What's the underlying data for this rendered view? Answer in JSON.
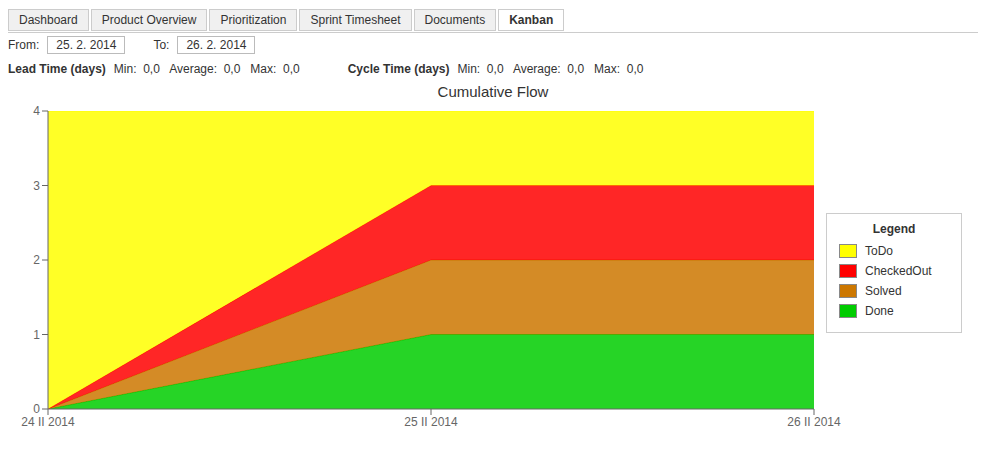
{
  "chart_data": {
    "type": "area",
    "title": "Cumulative Flow",
    "stacked": true,
    "grid": false,
    "legend": "right",
    "categories": [
      "24 ΙΙ 2014",
      "25 ΙΙ 2014",
      "26 ΙΙ 2014"
    ],
    "series": [
      {
        "name": "Done",
        "color": "#00cc00",
        "values": [
          0,
          1,
          1
        ]
      },
      {
        "name": "Solved",
        "color": "#cc7700",
        "values": [
          0,
          1,
          1
        ]
      },
      {
        "name": "CheckedOut",
        "color": "#ff0000",
        "values": [
          0,
          1,
          1
        ]
      },
      {
        "name": "ToDo",
        "color": "#ffff00",
        "values": [
          4,
          1,
          1
        ]
      }
    ],
    "ylim": [
      0,
      4
    ],
    "yticks": [
      0,
      1,
      2,
      3,
      4
    ],
    "annotations": [
      "Dashboard",
      "Product Overview",
      "Prioritization",
      "Sprint Timesheet",
      "Documents",
      "Kanban",
      "From:",
      "25. 2. 2014",
      "To:",
      "26. 2. 2014",
      "Lead Time (days)",
      "Min:  0,0   Average:  0,0   Max:  0,0",
      "Cycle Time (days)",
      "Min:  0,0   Average:  0,0   Max:  0,0",
      "Legend"
    ]
  }
}
